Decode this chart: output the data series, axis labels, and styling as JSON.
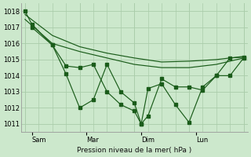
{
  "background_color": "#cce8cc",
  "grid_color": "#aaccaa",
  "line_color": "#1a5c1a",
  "xlabel": "Pression niveau de la mer( hPa )",
  "ylim": [
    1010.5,
    1018.5
  ],
  "yticks": [
    1011,
    1012,
    1013,
    1014,
    1015,
    1016,
    1017,
    1018
  ],
  "xtick_labels": [
    "Sam",
    "Mar",
    "Dim",
    "Lun"
  ],
  "xtick_positions": [
    0.5,
    4.5,
    8.5,
    12.5
  ],
  "vline_positions": [
    0,
    4,
    8,
    12,
    16
  ],
  "xlim": [
    -0.3,
    16.3
  ],
  "line1_x": [
    0,
    0.5,
    2,
    3,
    4,
    5,
    6,
    7,
    8,
    8.5,
    9,
    10,
    11,
    12,
    13,
    14,
    15,
    16
  ],
  "line1_y": [
    1018.0,
    1017.2,
    1015.9,
    1014.6,
    1014.5,
    1014.7,
    1013.0,
    1012.2,
    1011.8,
    1011.0,
    1013.2,
    1013.5,
    1012.2,
    1011.1,
    1013.3,
    1014.0,
    1014.0,
    1015.1
  ],
  "line2_x": [
    0,
    2,
    4,
    6,
    8,
    10,
    12,
    14,
    16
  ],
  "line2_y": [
    1017.8,
    1016.5,
    1015.8,
    1015.4,
    1015.1,
    1014.85,
    1014.9,
    1015.0,
    1015.2
  ],
  "line2b_x": [
    0,
    2,
    4,
    6,
    8,
    10,
    12,
    14,
    16
  ],
  "line2b_y": [
    1017.5,
    1016.0,
    1015.5,
    1015.1,
    1014.7,
    1014.5,
    1014.5,
    1014.7,
    1015.1
  ],
  "line3_x": [
    0.5,
    2,
    3,
    4,
    5,
    6,
    7,
    8,
    8.5,
    9,
    10,
    11,
    12,
    13,
    14,
    15,
    16
  ],
  "line3_y": [
    1017.0,
    1015.9,
    1014.1,
    1012.0,
    1012.5,
    1014.7,
    1013.0,
    1012.3,
    1011.0,
    1011.5,
    1013.8,
    1013.3,
    1013.3,
    1013.1,
    1014.0,
    1015.1,
    1015.15
  ]
}
